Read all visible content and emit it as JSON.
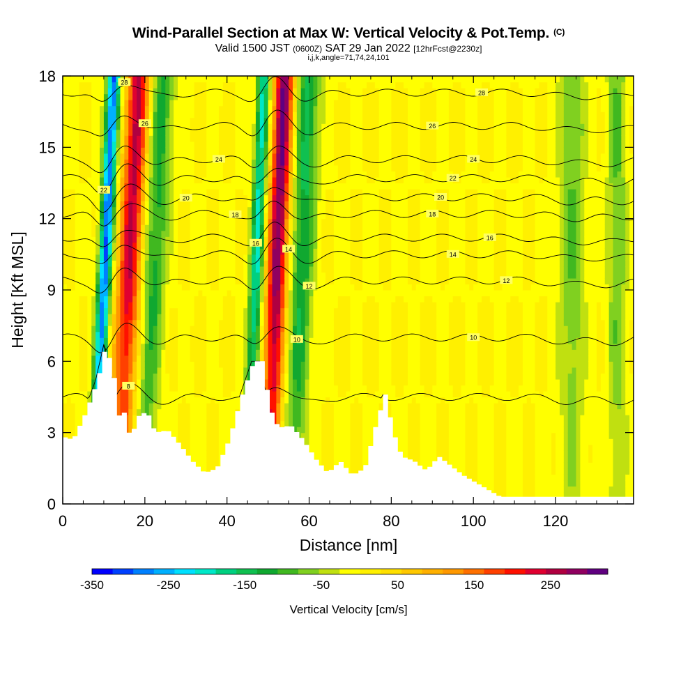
{
  "header": {
    "title": "Wind-Parallel Section at Max W: Vertical Velocity & Pot.Temp.",
    "copyright": "(C)",
    "valid_prefix": "Valid 1500 JST",
    "valid_utc": "(0600Z)",
    "valid_date": "SAT 29 Jan 2022",
    "forecast": "[12hrFcst@2230z]",
    "params": "i,j,k,angle=71,74,24,101"
  },
  "chart_data": {
    "type": "heatmap",
    "xlabel": "Distance [nm]",
    "ylabel": "Height [Kft MSL]",
    "xlim": [
      0,
      139
    ],
    "ylim": [
      0,
      18
    ],
    "xticks": [
      "0",
      "20",
      "40",
      "60",
      "80",
      "100",
      "120"
    ],
    "yticks": [
      "0",
      "3",
      "6",
      "9",
      "12",
      "15",
      "18"
    ],
    "colorbar": {
      "label": "Vertical Velocity [cm/s]",
      "range": [
        -350,
        325
      ],
      "tick_labels": [
        "-350",
        "-250",
        "-150",
        "-50",
        "50",
        "150",
        "250"
      ],
      "colors": [
        "#0000ff",
        "#0040ff",
        "#0080ff",
        "#00b0ff",
        "#00e0ff",
        "#00e8c8",
        "#00d080",
        "#10c050",
        "#10a830",
        "#40b820",
        "#80d020",
        "#c0e010",
        "#ffff00",
        "#fff000",
        "#ffe000",
        "#ffc800",
        "#ffb000",
        "#ff9800",
        "#ff7000",
        "#ff4000",
        "#ff1000",
        "#e00030",
        "#b00040",
        "#900060",
        "#600080"
      ]
    },
    "vertical_velocity_features": [
      {
        "x_center": 10,
        "x_span": [
          8,
          12
        ],
        "w_cm_s": -300,
        "note": "strong downdraft"
      },
      {
        "x_center": 16,
        "x_span": [
          13,
          20
        ],
        "w_cm_s": 250,
        "note": "strong updraft"
      },
      {
        "x_center": 22,
        "x_span": [
          19,
          26
        ],
        "w_cm_s": -120
      },
      {
        "x_center": 47,
        "x_span": [
          45,
          49
        ],
        "w_cm_s": -200
      },
      {
        "x_center": 52,
        "x_span": [
          49,
          55
        ],
        "w_cm_s": 300,
        "note": "max W"
      },
      {
        "x_center": 58,
        "x_span": [
          55,
          62
        ],
        "w_cm_s": -140
      },
      {
        "x_center": 124,
        "x_span": [
          120,
          128
        ],
        "w_cm_s": -80
      },
      {
        "x_center": 135,
        "x_span": [
          132,
          138
        ],
        "w_cm_s": -80
      }
    ],
    "terrain_kft": {
      "x": [
        0,
        2,
        5,
        8,
        10,
        12,
        13,
        14,
        15,
        16,
        18,
        20,
        22,
        25,
        28,
        31,
        34,
        37,
        40,
        43,
        46,
        48,
        50,
        52,
        55,
        58,
        61,
        64,
        67,
        70,
        73,
        76,
        78,
        80,
        82,
        85,
        88,
        91,
        94,
        97,
        100,
        104,
        106,
        110,
        139
      ],
      "y": [
        2.8,
        2.7,
        3.8,
        5.2,
        6.7,
        5.3,
        3.6,
        4.2,
        3.3,
        2.8,
        3.7,
        3.9,
        3.0,
        3.1,
        2.5,
        1.8,
        1.3,
        1.5,
        2.7,
        4.5,
        6.0,
        6.0,
        4.0,
        3.2,
        3.3,
        2.7,
        1.9,
        1.3,
        1.8,
        1.2,
        1.5,
        3.5,
        4.6,
        3.0,
        2.0,
        1.8,
        1.4,
        2.0,
        1.6,
        1.2,
        0.9,
        0.5,
        0.3,
        0.3,
        0.3
      ]
    },
    "theta_contours": [
      {
        "label": "8",
        "base_kft": 4.5
      },
      {
        "label": "10",
        "base_kft": 7.0
      },
      {
        "label": "12",
        "base_kft": 9.4
      },
      {
        "label": "14",
        "base_kft": 10.5
      },
      {
        "label": "16",
        "base_kft": 11.2
      },
      {
        "label": "18",
        "base_kft": 12.2
      },
      {
        "label": "20",
        "base_kft": 12.9
      },
      {
        "label": "22",
        "base_kft": 13.7
      },
      {
        "label": "24",
        "base_kft": 14.5
      },
      {
        "label": "26",
        "base_kft": 15.9
      },
      {
        "label": "28",
        "base_kft": 17.3
      }
    ]
  }
}
